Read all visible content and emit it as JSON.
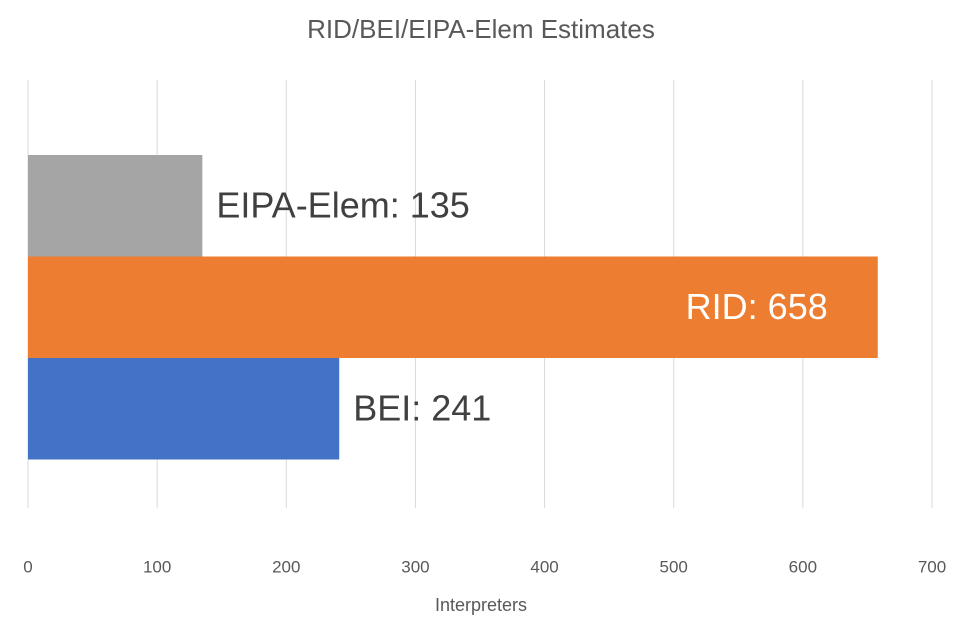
{
  "chart_data": {
    "type": "bar",
    "orientation": "horizontal",
    "title": "RID/BEI/EIPA-Elem Estimates",
    "x_label": "Interpreters",
    "series": [
      {
        "name": "BEI",
        "color": "#4472c4",
        "values": [
          241
        ],
        "value_labels": [
          "BEI: 241"
        ]
      },
      {
        "name": "RID",
        "color": "#ed7d31",
        "values": [
          658
        ],
        "value_labels": [
          "RID: 658"
        ]
      },
      {
        "name": "EIPA-Elem",
        "color": "#a5a5a5",
        "values": [
          135
        ],
        "value_labels": [
          "EIPA-Elem: 135"
        ]
      }
    ],
    "xlim": [
      0,
      700
    ],
    "xticks": [
      0,
      100,
      200,
      300,
      400,
      500,
      600,
      700
    ],
    "grid": true
  }
}
